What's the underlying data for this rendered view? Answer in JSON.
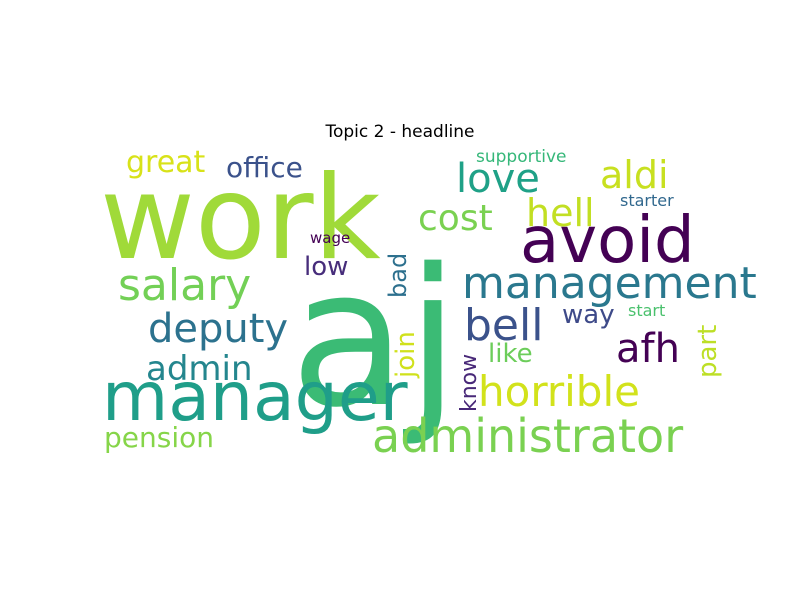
{
  "title": "Topic 2 - headline",
  "words": [
    {
      "text": "work",
      "color": "#a0da39",
      "rotated": false
    },
    {
      "text": "aj",
      "color": "#3bbb75",
      "rotated": false
    },
    {
      "text": "manager",
      "color": "#1f9e89",
      "rotated": false
    },
    {
      "text": "avoid",
      "color": "#440154",
      "rotated": false
    },
    {
      "text": "administrator",
      "color": "#7ad151",
      "rotated": false
    },
    {
      "text": "management",
      "color": "#2a788e",
      "rotated": false
    },
    {
      "text": "salary",
      "color": "#73d056",
      "rotated": false
    },
    {
      "text": "deputy",
      "color": "#2c728e",
      "rotated": false
    },
    {
      "text": "horrible",
      "color": "#d2e21b",
      "rotated": false
    },
    {
      "text": "bell",
      "color": "#3b528b",
      "rotated": false
    },
    {
      "text": "love",
      "color": "#1fa187",
      "rotated": false
    },
    {
      "text": "hell",
      "color": "#c2df23",
      "rotated": false
    },
    {
      "text": "cost",
      "color": "#7ad151",
      "rotated": false
    },
    {
      "text": "aldi",
      "color": "#c8e020",
      "rotated": false
    },
    {
      "text": "afh",
      "color": "#440154",
      "rotated": false
    },
    {
      "text": "admin",
      "color": "#24868e",
      "rotated": false
    },
    {
      "text": "office",
      "color": "#3b528b",
      "rotated": false
    },
    {
      "text": "great",
      "color": "#d8e219",
      "rotated": false
    },
    {
      "text": "pension",
      "color": "#86d549",
      "rotated": false
    },
    {
      "text": "low",
      "color": "#472d7b",
      "rotated": false
    },
    {
      "text": "like",
      "color": "#6ccd5a",
      "rotated": false
    },
    {
      "text": "way",
      "color": "#3e4a89",
      "rotated": false
    },
    {
      "text": "bad",
      "color": "#2d708e",
      "rotated": true
    },
    {
      "text": "join",
      "color": "#d0e11c",
      "rotated": true
    },
    {
      "text": "know",
      "color": "#482878",
      "rotated": true
    },
    {
      "text": "part",
      "color": "#bddf26",
      "rotated": true
    },
    {
      "text": "supportive",
      "color": "#35b779",
      "rotated": false
    },
    {
      "text": "starter",
      "color": "#31688e",
      "rotated": false
    },
    {
      "text": "start",
      "color": "#4ac16d",
      "rotated": false
    },
    {
      "text": "wage",
      "color": "#440154",
      "rotated": false
    }
  ]
}
